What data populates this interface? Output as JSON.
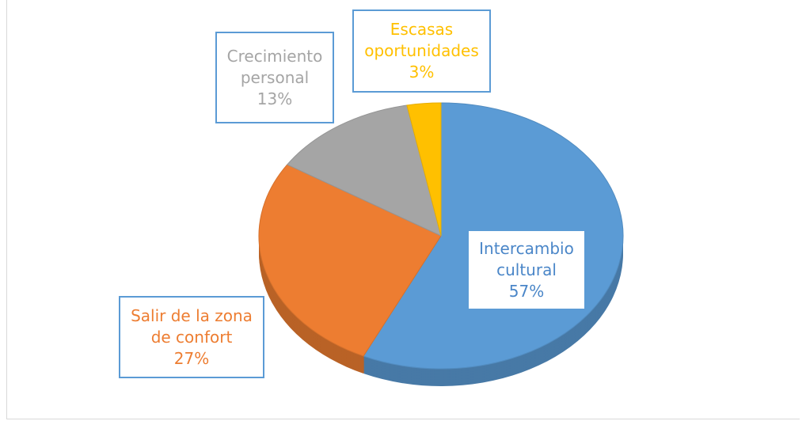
{
  "chart_data": {
    "type": "pie",
    "categories": [
      "Intercambio cultural",
      "Salir de la zona de confort",
      "Crecimiento personal",
      "Escasas oportunidades"
    ],
    "values": [
      57,
      27,
      13,
      3
    ],
    "value_labels": [
      "57%",
      "27%",
      "13%",
      "3%"
    ],
    "colors": [
      "#5b9bd5",
      "#ed7d31",
      "#a5a5a5",
      "#ffc000"
    ]
  }
}
